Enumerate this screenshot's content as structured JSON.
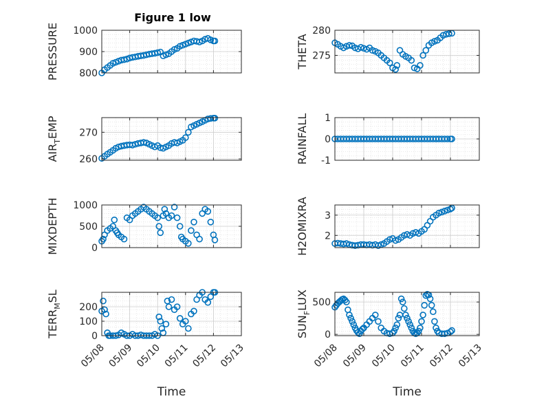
{
  "figure": {
    "title": "Figure 1 low",
    "xlabel": "Time",
    "marker_color": "#0072BD",
    "grid_color": "#d9d9d9",
    "axis_color": "#262626"
  },
  "chart_data": [
    {
      "type": "scatter",
      "ylabel": "PRESSURE",
      "ylabel_sub": "",
      "ylim": [
        800,
        1000
      ],
      "yticks": [
        800,
        900,
        1000
      ],
      "ytick_labels": [
        "800",
        "900",
        "1000"
      ],
      "xlim": [
        "05/08",
        "05/13"
      ],
      "xticks": [
        "05/08",
        "05/09",
        "05/10",
        "05/11",
        "05/12",
        "05/13"
      ],
      "show_xtick_labels": false,
      "grid": true,
      "series": [
        {
          "x": [
            8.0,
            8.1,
            8.2,
            8.3,
            8.4,
            8.5,
            8.6,
            8.7,
            8.8,
            8.9,
            9.0,
            9.1,
            9.2,
            9.3,
            9.4,
            9.5,
            9.6,
            9.7,
            9.8,
            9.9,
            10.0,
            10.1,
            10.2,
            10.3,
            10.4,
            10.5,
            10.6,
            10.7,
            10.8,
            10.9,
            11.0,
            11.1,
            11.2,
            11.3,
            11.4,
            11.5,
            11.6,
            11.7,
            11.8,
            11.9,
            12.0,
            12.05
          ],
          "y": [
            800,
            815,
            825,
            835,
            845,
            850,
            855,
            860,
            862,
            865,
            870,
            873,
            875,
            878,
            880,
            882,
            885,
            888,
            890,
            892,
            895,
            898,
            880,
            885,
            890,
            900,
            910,
            915,
            925,
            930,
            935,
            940,
            945,
            950,
            948,
            945,
            950,
            958,
            962,
            955,
            950,
            950
          ]
        }
      ]
    },
    {
      "type": "scatter",
      "ylabel": "THETA",
      "ylabel_sub": "",
      "ylim": [
        271.5,
        280
      ],
      "yticks": [
        275,
        280
      ],
      "ytick_labels": [
        "275",
        "280"
      ],
      "xlim": [
        "05/08",
        "05/13"
      ],
      "xticks": [
        "05/08",
        "05/09",
        "05/10",
        "05/11",
        "05/12",
        "05/13"
      ],
      "show_xtick_labels": false,
      "grid": true,
      "series": [
        {
          "x": [
            8.0,
            8.1,
            8.2,
            8.3,
            8.4,
            8.5,
            8.6,
            8.7,
            8.8,
            8.9,
            9.0,
            9.1,
            9.2,
            9.3,
            9.4,
            9.5,
            9.6,
            9.7,
            9.8,
            9.9,
            10.0,
            10.1,
            10.15,
            10.25,
            10.35,
            10.45,
            10.55,
            10.65,
            10.75,
            10.85,
            10.95,
            11.05,
            11.15,
            11.25,
            11.35,
            11.45,
            11.55,
            11.65,
            11.75,
            11.85,
            11.95,
            12.05
          ],
          "y": [
            277.5,
            277.2,
            276.8,
            276.5,
            276.8,
            277.0,
            276.9,
            276.5,
            276.3,
            276.6,
            276.4,
            276.2,
            276.5,
            276.0,
            275.8,
            275.5,
            275.0,
            274.5,
            274.0,
            273.5,
            272.5,
            272.2,
            273.0,
            276.0,
            275.2,
            274.8,
            274.5,
            274.0,
            272.5,
            272.3,
            273.0,
            275.0,
            276.0,
            277.0,
            277.5,
            277.8,
            278.0,
            278.5,
            279.0,
            279.2,
            279.3,
            279.4
          ]
        }
      ]
    },
    {
      "type": "scatter",
      "ylabel": "AIR",
      "ylabel_sub": "T",
      "ylabel_post": "EMP",
      "ylim": [
        259.5,
        275.5
      ],
      "yticks": [
        260,
        270
      ],
      "ytick_labels": [
        "260",
        "270"
      ],
      "xlim": [
        "05/08",
        "05/13"
      ],
      "xticks": [
        "05/08",
        "05/09",
        "05/10",
        "05/11",
        "05/12",
        "05/13"
      ],
      "show_xtick_labels": false,
      "grid": true,
      "series": [
        {
          "x": [
            8.0,
            8.1,
            8.2,
            8.3,
            8.4,
            8.5,
            8.6,
            8.7,
            8.8,
            8.9,
            9.0,
            9.1,
            9.2,
            9.3,
            9.4,
            9.5,
            9.6,
            9.7,
            9.8,
            9.9,
            10.0,
            10.1,
            10.2,
            10.3,
            10.4,
            10.5,
            10.6,
            10.7,
            10.8,
            10.9,
            11.0,
            11.1,
            11.2,
            11.3,
            11.4,
            11.5,
            11.6,
            11.7,
            11.8,
            11.9,
            12.0,
            12.05
          ],
          "y": [
            260.2,
            261.0,
            261.8,
            262.5,
            263.2,
            264.0,
            264.5,
            264.8,
            265.0,
            265.2,
            265.3,
            265.2,
            265.5,
            265.8,
            266.0,
            266.2,
            266.0,
            265.5,
            265.0,
            264.5,
            265.0,
            264.2,
            264.0,
            264.5,
            265.0,
            265.8,
            266.2,
            266.0,
            266.5,
            267.0,
            268.0,
            270.0,
            272.0,
            272.5,
            273.0,
            273.5,
            274.0,
            274.5,
            275.0,
            275.2,
            275.3,
            275.3
          ]
        }
      ]
    },
    {
      "type": "scatter",
      "ylabel": "RAINFALL",
      "ylabel_sub": "",
      "ylim": [
        -1,
        1
      ],
      "yticks": [
        -1,
        0,
        1
      ],
      "ytick_labels": [
        "-1",
        "0",
        "1"
      ],
      "xlim": [
        "05/08",
        "05/13"
      ],
      "xticks": [
        "05/08",
        "05/09",
        "05/10",
        "05/11",
        "05/12",
        "05/13"
      ],
      "show_xtick_labels": false,
      "grid": true,
      "series": [
        {
          "x": [
            8.0,
            8.1,
            8.2,
            8.3,
            8.4,
            8.5,
            8.6,
            8.7,
            8.8,
            8.9,
            9.0,
            9.1,
            9.2,
            9.3,
            9.4,
            9.5,
            9.6,
            9.7,
            9.8,
            9.9,
            10.0,
            10.1,
            10.2,
            10.3,
            10.4,
            10.5,
            10.6,
            10.7,
            10.8,
            10.9,
            11.0,
            11.1,
            11.2,
            11.3,
            11.4,
            11.5,
            11.6,
            11.7,
            11.8,
            11.9,
            12.0,
            12.05
          ],
          "y": [
            0,
            0,
            0,
            0,
            0,
            0,
            0,
            0,
            0,
            0,
            0,
            0,
            0,
            0,
            0,
            0,
            0,
            0,
            0,
            0,
            0,
            0,
            0,
            0,
            0,
            0,
            0,
            0,
            0,
            0,
            0,
            0,
            0,
            0,
            0,
            0,
            0,
            0,
            0,
            0,
            0,
            0
          ]
        }
      ]
    },
    {
      "type": "scatter",
      "ylabel": "MIXDEPTH",
      "ylabel_sub": "",
      "ylim": [
        0,
        1000
      ],
      "yticks": [
        0,
        500,
        1000
      ],
      "ytick_labels": [
        "0",
        "500",
        "1000"
      ],
      "xlim": [
        "05/08",
        "05/13"
      ],
      "xticks": [
        "05/08",
        "05/09",
        "05/10",
        "05/11",
        "05/12",
        "05/13"
      ],
      "show_xtick_labels": false,
      "grid": true,
      "series": [
        {
          "x": [
            8.0,
            8.05,
            8.1,
            8.2,
            8.3,
            8.4,
            8.45,
            8.5,
            8.55,
            8.6,
            8.7,
            8.8,
            8.9,
            9.0,
            9.1,
            9.2,
            9.3,
            9.4,
            9.5,
            9.6,
            9.7,
            9.8,
            9.9,
            10.0,
            10.05,
            10.1,
            10.2,
            10.25,
            10.3,
            10.4,
            10.5,
            10.6,
            10.7,
            10.8,
            10.85,
            10.9,
            11.0,
            11.1,
            11.2,
            11.3,
            11.4,
            11.5,
            11.6,
            11.7,
            11.8,
            11.9,
            12.0,
            12.05
          ],
          "y": [
            150,
            200,
            300,
            400,
            450,
            500,
            650,
            400,
            350,
            300,
            250,
            200,
            700,
            650,
            750,
            800,
            850,
            900,
            950,
            900,
            850,
            800,
            750,
            700,
            500,
            350,
            750,
            900,
            800,
            700,
            750,
            950,
            700,
            500,
            250,
            200,
            150,
            100,
            400,
            600,
            300,
            200,
            800,
            900,
            850,
            600,
            300,
            180
          ]
        }
      ]
    },
    {
      "type": "scatter",
      "ylabel": "H2OMIXRA",
      "ylabel_sub": "",
      "ylim": [
        1.4,
        3.5
      ],
      "yticks": [
        2,
        3
      ],
      "ytick_labels": [
        "2",
        "3"
      ],
      "xlim": [
        "05/08",
        "05/13"
      ],
      "xticks": [
        "05/08",
        "05/09",
        "05/10",
        "05/11",
        "05/12",
        "05/13"
      ],
      "show_xtick_labels": false,
      "grid": true,
      "series": [
        {
          "x": [
            8.0,
            8.1,
            8.2,
            8.3,
            8.4,
            8.5,
            8.6,
            8.7,
            8.8,
            8.9,
            9.0,
            9.1,
            9.2,
            9.3,
            9.4,
            9.5,
            9.6,
            9.7,
            9.8,
            9.9,
            10.0,
            10.1,
            10.2,
            10.3,
            10.4,
            10.5,
            10.6,
            10.7,
            10.8,
            10.9,
            11.0,
            11.1,
            11.2,
            11.3,
            11.4,
            11.5,
            11.6,
            11.7,
            11.8,
            11.9,
            12.0,
            12.05
          ],
          "y": [
            1.6,
            1.62,
            1.6,
            1.58,
            1.6,
            1.55,
            1.52,
            1.5,
            1.52,
            1.55,
            1.55,
            1.53,
            1.55,
            1.52,
            1.55,
            1.5,
            1.55,
            1.6,
            1.7,
            1.8,
            1.85,
            1.75,
            1.8,
            1.9,
            2.0,
            2.05,
            2.0,
            2.1,
            2.15,
            2.1,
            2.2,
            2.3,
            2.5,
            2.7,
            2.9,
            3.0,
            3.1,
            3.15,
            3.2,
            3.25,
            3.3,
            3.35
          ]
        }
      ]
    },
    {
      "type": "scatter",
      "ylabel": "TERR",
      "ylabel_sub": "M",
      "ylabel_post": "SL",
      "ylim": [
        0,
        300
      ],
      "yticks": [
        0,
        100,
        200
      ],
      "ytick_labels": [
        "0",
        "100",
        "200"
      ],
      "xlim": [
        "05/08",
        "05/13"
      ],
      "xticks": [
        "05/08",
        "05/09",
        "05/10",
        "05/11",
        "05/12",
        "05/13"
      ],
      "xtick_labels": [
        "05/08",
        "05/09",
        "05/10",
        "05/11",
        "05/12",
        "05/13"
      ],
      "show_xtick_labels": true,
      "grid": true,
      "series": [
        {
          "x": [
            8.0,
            8.05,
            8.1,
            8.15,
            8.2,
            8.25,
            8.3,
            8.4,
            8.5,
            8.6,
            8.7,
            8.8,
            8.9,
            9.0,
            9.1,
            9.2,
            9.3,
            9.4,
            9.5,
            9.6,
            9.7,
            9.8,
            9.9,
            10.0,
            10.05,
            10.1,
            10.15,
            10.2,
            10.3,
            10.35,
            10.4,
            10.5,
            10.6,
            10.7,
            10.8,
            10.9,
            11.0,
            11.1,
            11.2,
            11.3,
            11.4,
            11.5,
            11.6,
            11.7,
            11.8,
            11.9,
            12.0,
            12.05
          ],
          "y": [
            170,
            240,
            180,
            150,
            20,
            0,
            0,
            0,
            0,
            5,
            20,
            10,
            0,
            0,
            10,
            0,
            0,
            5,
            0,
            0,
            0,
            0,
            10,
            0,
            130,
            100,
            50,
            20,
            80,
            240,
            200,
            250,
            180,
            200,
            120,
            80,
            100,
            50,
            150,
            170,
            250,
            280,
            300,
            250,
            230,
            270,
            300,
            300
          ]
        }
      ]
    },
    {
      "type": "scatter",
      "ylabel": "SUN",
      "ylabel_sub": "F",
      "ylabel_post": "LUX",
      "ylim": [
        -20,
        650
      ],
      "yticks": [
        0,
        500
      ],
      "ytick_labels": [
        "0",
        "500"
      ],
      "xlim": [
        "05/08",
        "05/13"
      ],
      "xticks": [
        "05/08",
        "05/09",
        "05/10",
        "05/11",
        "05/12",
        "05/13"
      ],
      "xtick_labels": [
        "05/08",
        "05/09",
        "05/10",
        "05/11",
        "05/12",
        "05/13"
      ],
      "show_xtick_labels": true,
      "grid": true,
      "series": [
        {
          "x": [
            8.0,
            8.05,
            8.1,
            8.15,
            8.2,
            8.25,
            8.3,
            8.35,
            8.4,
            8.45,
            8.5,
            8.55,
            8.6,
            8.65,
            8.7,
            8.75,
            8.8,
            8.85,
            8.9,
            8.95,
            9.0,
            9.1,
            9.2,
            9.3,
            9.4,
            9.5,
            9.6,
            9.7,
            9.8,
            9.9,
            10.0,
            10.05,
            10.1,
            10.15,
            10.2,
            10.25,
            10.3,
            10.35,
            10.4,
            10.45,
            10.5,
            10.55,
            10.6,
            10.65,
            10.7,
            10.75,
            10.8,
            10.85,
            10.9,
            10.95,
            11.0,
            11.05,
            11.1,
            11.15,
            11.2,
            11.25,
            11.3,
            11.35,
            11.4,
            11.45,
            11.5,
            11.55,
            11.6,
            11.7,
            11.8,
            11.9,
            12.0,
            12.05
          ],
          "y": [
            420,
            450,
            480,
            500,
            520,
            540,
            550,
            530,
            500,
            380,
            300,
            250,
            200,
            150,
            100,
            60,
            30,
            10,
            50,
            80,
            100,
            150,
            200,
            250,
            300,
            200,
            100,
            50,
            20,
            10,
            20,
            50,
            100,
            150,
            250,
            300,
            550,
            500,
            400,
            300,
            250,
            200,
            150,
            100,
            50,
            20,
            10,
            20,
            50,
            100,
            200,
            300,
            450,
            600,
            620,
            610,
            550,
            450,
            350,
            200,
            100,
            50,
            20,
            10,
            10,
            20,
            40,
            60
          ]
        }
      ]
    }
  ]
}
